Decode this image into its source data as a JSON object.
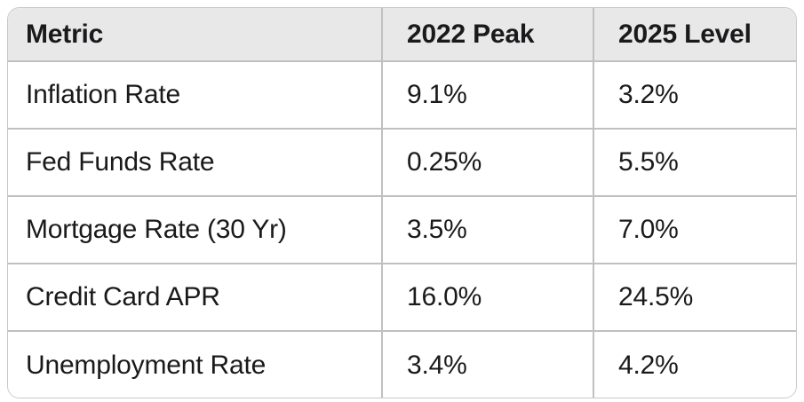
{
  "table": {
    "columns": [
      {
        "key": "metric",
        "label": "Metric"
      },
      {
        "key": "peak_2022",
        "label": "2022 Peak"
      },
      {
        "key": "level_2025",
        "label": "2025 Level"
      }
    ],
    "rows": [
      {
        "metric": "Inflation Rate",
        "peak_2022": "9.1%",
        "level_2025": "3.2%"
      },
      {
        "metric": "Fed Funds Rate",
        "peak_2022": "0.25%",
        "level_2025": "5.5%"
      },
      {
        "metric": "Mortgage Rate (30 Yr)",
        "peak_2022": "3.5%",
        "level_2025": "7.0%"
      },
      {
        "metric": "Credit Card APR",
        "peak_2022": "16.0%",
        "level_2025": "24.5%"
      },
      {
        "metric": "Unemployment Rate",
        "peak_2022": "3.4%",
        "level_2025": "4.2%"
      }
    ]
  },
  "chart_data": {
    "type": "table",
    "columns": [
      "Metric",
      "2022 Peak",
      "2025 Level"
    ],
    "rows": [
      [
        "Inflation Rate",
        "9.1%",
        "3.2%"
      ],
      [
        "Fed Funds Rate",
        "0.25%",
        "5.5%"
      ],
      [
        "Mortgage Rate (30 Yr)",
        "3.5%",
        "7.0%"
      ],
      [
        "Credit Card APR",
        "16.0%",
        "24.5%"
      ],
      [
        "Unemployment Rate",
        "3.4%",
        "4.2%"
      ]
    ]
  },
  "colors": {
    "header_bg": "#e8e8e9",
    "row_bg": "#ffffff",
    "border": "#c0c0c0",
    "outer_border": "#c9c9c9",
    "text": "#1a1a1c"
  }
}
